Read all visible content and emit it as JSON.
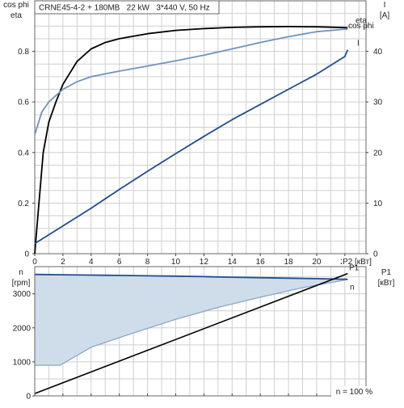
{
  "chart_data": [
    {
      "type": "line",
      "title": "CRNE45-4-2 + 180MB   22 kW   3*440 V, 50 Hz",
      "xlabel": "P2 [кВт]",
      "ylabel_left": "cos phi\neta",
      "ylabel_right": "I\n[A]",
      "xlim": [
        0,
        23.5
      ],
      "ylim_left": [
        0,
        1.0
      ],
      "ylim_right": [
        0,
        50
      ],
      "xticks": [
        0,
        2,
        4,
        6,
        8,
        10,
        12,
        14,
        16,
        18,
        20,
        22
      ],
      "yticks_left": [
        "0",
        "0.2",
        "0.4",
        "0.6",
        "0.8"
      ],
      "yticks_left_values": [
        0,
        0.2,
        0.4,
        0.6,
        0.8
      ],
      "yticks_right": [
        "0",
        "10",
        "20",
        "30",
        "40"
      ],
      "yticks_right_values": [
        0,
        10,
        20,
        30,
        40
      ],
      "grid": true,
      "series": [
        {
          "name": "eta",
          "axis": "left",
          "color": "#000000",
          "x": [
            0,
            0.3,
            0.6,
            1.0,
            1.5,
            2.0,
            3.0,
            4.0,
            5.0,
            6.0,
            8.0,
            10.0,
            12.0,
            14.0,
            16.0,
            18.0,
            20.0,
            22.0,
            22.2
          ],
          "y": [
            0.0,
            0.2,
            0.4,
            0.52,
            0.6,
            0.67,
            0.76,
            0.81,
            0.835,
            0.85,
            0.87,
            0.883,
            0.89,
            0.895,
            0.897,
            0.898,
            0.897,
            0.894,
            0.893
          ]
        },
        {
          "name": "cos phi",
          "axis": "left",
          "color": "#6f93bd",
          "x": [
            0,
            0.5,
            1.0,
            2.0,
            3.0,
            4.0,
            6.0,
            8.0,
            10.0,
            12.0,
            14.0,
            16.0,
            18.0,
            20.0,
            22.0,
            22.2
          ],
          "y": [
            0.47,
            0.56,
            0.6,
            0.65,
            0.68,
            0.7,
            0.722,
            0.742,
            0.763,
            0.785,
            0.81,
            0.835,
            0.858,
            0.878,
            0.888,
            0.888
          ]
        },
        {
          "name": "I",
          "axis": "right",
          "color": "#1f4e8c",
          "x": [
            0,
            2,
            4,
            6,
            8,
            10,
            12,
            14,
            16,
            18,
            20,
            22,
            22.2
          ],
          "y": [
            2.0,
            5.5,
            9.0,
            12.7,
            16.3,
            19.8,
            23.2,
            26.5,
            29.5,
            32.5,
            35.5,
            39.0,
            40.3
          ]
        }
      ],
      "series_labels": [
        "eta",
        "cos phi",
        "I"
      ]
    },
    {
      "type": "area",
      "ylabel_left": "n\n[rpm]",
      "ylabel_right": "P1\n[кВт]",
      "xlim": [
        0,
        23.5
      ],
      "ylim_left": [
        0,
        3800
      ],
      "yticks_left": [
        "0",
        "1000",
        "2000",
        "3000"
      ],
      "yticks_left_values": [
        0,
        1000,
        2000,
        3000
      ],
      "grid": true,
      "annotation": "n = 100 %",
      "series": [
        {
          "name": "n",
          "axis": "left",
          "color": "#1f4e8c",
          "x": [
            0,
            2,
            4,
            6,
            8,
            10,
            12,
            14,
            16,
            18,
            20,
            22,
            22.2
          ],
          "y": [
            3570,
            3560,
            3550,
            3540,
            3530,
            3520,
            3505,
            3490,
            3475,
            3460,
            3445,
            3430,
            3428
          ]
        },
        {
          "name": "fill lower edge",
          "axis": "left",
          "color": "#8aa8c8",
          "x": [
            0,
            1.8,
            4.0,
            7.0,
            10.0,
            13.0,
            16.0,
            19.0,
            22.2
          ],
          "y": [
            900,
            900,
            1430,
            1850,
            2250,
            2600,
            2900,
            3180,
            3420
          ]
        },
        {
          "name": "P1",
          "axis": "right",
          "color": "#000000",
          "x": [
            0,
            22.2
          ],
          "y": [
            0.5,
            26.5
          ]
        }
      ],
      "series_labels": [
        "n",
        "P1"
      ]
    }
  ]
}
